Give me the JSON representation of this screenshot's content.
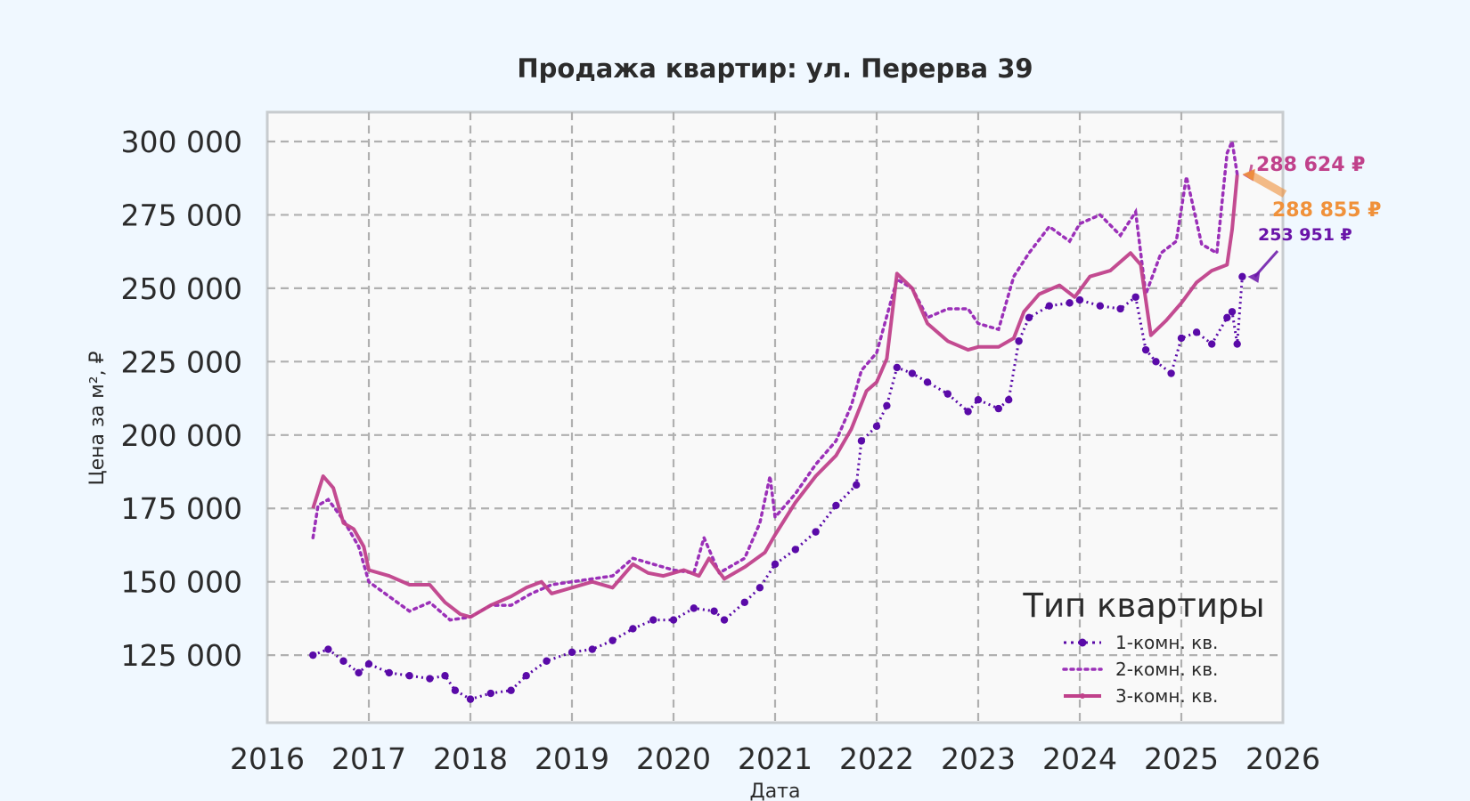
{
  "chart_data": {
    "type": "line",
    "title": "Продажа квартир: ул. Перерва 39",
    "xlabel": "Дата",
    "ylabel": "Цена за м², ₽",
    "xlim": [
      2016,
      2026
    ],
    "ylim": [
      102000,
      310000
    ],
    "x_ticks": [
      "2016",
      "2017",
      "2018",
      "2019",
      "2020",
      "2021",
      "2022",
      "2023",
      "2024",
      "2025",
      "2026"
    ],
    "y_ticks": [
      {
        "value": 125000,
        "label": "125 000"
      },
      {
        "value": 150000,
        "label": "150 000"
      },
      {
        "value": 175000,
        "label": "175 000"
      },
      {
        "value": 200000,
        "label": "200 000"
      },
      {
        "value": 225000,
        "label": "225 000"
      },
      {
        "value": 250000,
        "label": "250 000"
      },
      {
        "value": 275000,
        "label": "275 000"
      },
      {
        "value": 300000,
        "label": "300 000"
      }
    ],
    "grid": true,
    "legend": {
      "title": "Тип квартиры",
      "position": "lower-right"
    },
    "series": [
      {
        "name": "1-комн. кв.",
        "color": "#5a0aa8",
        "style": "dotted-markers",
        "points": [
          [
            2016.45,
            125000
          ],
          [
            2016.6,
            127000
          ],
          [
            2016.75,
            123000
          ],
          [
            2016.9,
            119000
          ],
          [
            2017.0,
            122000
          ],
          [
            2017.2,
            119000
          ],
          [
            2017.4,
            118000
          ],
          [
            2017.6,
            117000
          ],
          [
            2017.75,
            118000
          ],
          [
            2017.85,
            113000
          ],
          [
            2018.0,
            110000
          ],
          [
            2018.2,
            112000
          ],
          [
            2018.4,
            113000
          ],
          [
            2018.55,
            118000
          ],
          [
            2018.75,
            123000
          ],
          [
            2019.0,
            126000
          ],
          [
            2019.2,
            127000
          ],
          [
            2019.4,
            130000
          ],
          [
            2019.6,
            134000
          ],
          [
            2019.8,
            137000
          ],
          [
            2020.0,
            137000
          ],
          [
            2020.2,
            141000
          ],
          [
            2020.4,
            140000
          ],
          [
            2020.5,
            137000
          ],
          [
            2020.7,
            143000
          ],
          [
            2020.85,
            148000
          ],
          [
            2021.0,
            156000
          ],
          [
            2021.2,
            161000
          ],
          [
            2021.4,
            167000
          ],
          [
            2021.6,
            176000
          ],
          [
            2021.8,
            183000
          ],
          [
            2021.85,
            198000
          ],
          [
            2022.0,
            203000
          ],
          [
            2022.1,
            210000
          ],
          [
            2022.2,
            223000
          ],
          [
            2022.35,
            221000
          ],
          [
            2022.5,
            218000
          ],
          [
            2022.7,
            214000
          ],
          [
            2022.9,
            208000
          ],
          [
            2023.0,
            212000
          ],
          [
            2023.2,
            209000
          ],
          [
            2023.3,
            212000
          ],
          [
            2023.4,
            232000
          ],
          [
            2023.5,
            240000
          ],
          [
            2023.7,
            244000
          ],
          [
            2023.9,
            245000
          ],
          [
            2024.0,
            246000
          ],
          [
            2024.2,
            244000
          ],
          [
            2024.4,
            243000
          ],
          [
            2024.55,
            247000
          ],
          [
            2024.65,
            229000
          ],
          [
            2024.75,
            225000
          ],
          [
            2024.9,
            221000
          ],
          [
            2025.0,
            233000
          ],
          [
            2025.15,
            235000
          ],
          [
            2025.3,
            231000
          ],
          [
            2025.45,
            240000
          ],
          [
            2025.5,
            242000
          ],
          [
            2025.55,
            231000
          ],
          [
            2025.6,
            253951
          ]
        ]
      },
      {
        "name": "2-комн. кв.",
        "color": "#9b30b8",
        "style": "dotted",
        "points": [
          [
            2016.45,
            165000
          ],
          [
            2016.5,
            176000
          ],
          [
            2016.6,
            178000
          ],
          [
            2016.75,
            171000
          ],
          [
            2016.9,
            162000
          ],
          [
            2017.0,
            150000
          ],
          [
            2017.2,
            145000
          ],
          [
            2017.4,
            140000
          ],
          [
            2017.6,
            143000
          ],
          [
            2017.8,
            137000
          ],
          [
            2018.0,
            138000
          ],
          [
            2018.2,
            142000
          ],
          [
            2018.4,
            142000
          ],
          [
            2018.6,
            146000
          ],
          [
            2018.8,
            149000
          ],
          [
            2019.0,
            150000
          ],
          [
            2019.2,
            151000
          ],
          [
            2019.4,
            152000
          ],
          [
            2019.6,
            158000
          ],
          [
            2019.8,
            156000
          ],
          [
            2020.0,
            154000
          ],
          [
            2020.2,
            153000
          ],
          [
            2020.3,
            165000
          ],
          [
            2020.45,
            153000
          ],
          [
            2020.7,
            158000
          ],
          [
            2020.85,
            170000
          ],
          [
            2020.95,
            186000
          ],
          [
            2021.0,
            172000
          ],
          [
            2021.2,
            180000
          ],
          [
            2021.4,
            190000
          ],
          [
            2021.6,
            198000
          ],
          [
            2021.75,
            210000
          ],
          [
            2021.85,
            222000
          ],
          [
            2022.0,
            228000
          ],
          [
            2022.2,
            253000
          ],
          [
            2022.35,
            250000
          ],
          [
            2022.5,
            240000
          ],
          [
            2022.7,
            243000
          ],
          [
            2022.9,
            243000
          ],
          [
            2023.0,
            238000
          ],
          [
            2023.2,
            236000
          ],
          [
            2023.35,
            254000
          ],
          [
            2023.5,
            262000
          ],
          [
            2023.7,
            271000
          ],
          [
            2023.9,
            266000
          ],
          [
            2024.0,
            272000
          ],
          [
            2024.2,
            275000
          ],
          [
            2024.4,
            268000
          ],
          [
            2024.55,
            276000
          ],
          [
            2024.65,
            248000
          ],
          [
            2024.8,
            262000
          ],
          [
            2024.95,
            266000
          ],
          [
            2025.05,
            288000
          ],
          [
            2025.2,
            265000
          ],
          [
            2025.35,
            262000
          ],
          [
            2025.45,
            296000
          ],
          [
            2025.5,
            300000
          ],
          [
            2025.55,
            288855
          ]
        ]
      },
      {
        "name": "3-комн. кв.",
        "color": "#c0418b",
        "style": "solid",
        "points": [
          [
            2016.45,
            175000
          ],
          [
            2016.55,
            186000
          ],
          [
            2016.65,
            182000
          ],
          [
            2016.75,
            170000
          ],
          [
            2016.85,
            168000
          ],
          [
            2016.95,
            162000
          ],
          [
            2017.0,
            154000
          ],
          [
            2017.2,
            152000
          ],
          [
            2017.4,
            149000
          ],
          [
            2017.6,
            149000
          ],
          [
            2017.75,
            143000
          ],
          [
            2017.9,
            139000
          ],
          [
            2018.0,
            138000
          ],
          [
            2018.2,
            142000
          ],
          [
            2018.4,
            145000
          ],
          [
            2018.55,
            148000
          ],
          [
            2018.7,
            150000
          ],
          [
            2018.8,
            146000
          ],
          [
            2019.0,
            148000
          ],
          [
            2019.2,
            150000
          ],
          [
            2019.4,
            148000
          ],
          [
            2019.6,
            156000
          ],
          [
            2019.75,
            153000
          ],
          [
            2019.9,
            152000
          ],
          [
            2020.1,
            154000
          ],
          [
            2020.25,
            152000
          ],
          [
            2020.35,
            158000
          ],
          [
            2020.5,
            151000
          ],
          [
            2020.7,
            155000
          ],
          [
            2020.9,
            160000
          ],
          [
            2021.0,
            166000
          ],
          [
            2021.2,
            177000
          ],
          [
            2021.4,
            186000
          ],
          [
            2021.6,
            193000
          ],
          [
            2021.75,
            202000
          ],
          [
            2021.9,
            215000
          ],
          [
            2022.0,
            218000
          ],
          [
            2022.1,
            226000
          ],
          [
            2022.2,
            255000
          ],
          [
            2022.35,
            250000
          ],
          [
            2022.5,
            238000
          ],
          [
            2022.7,
            232000
          ],
          [
            2022.9,
            229000
          ],
          [
            2023.0,
            230000
          ],
          [
            2023.2,
            230000
          ],
          [
            2023.35,
            233000
          ],
          [
            2023.45,
            242000
          ],
          [
            2023.6,
            248000
          ],
          [
            2023.8,
            251000
          ],
          [
            2023.95,
            247000
          ],
          [
            2024.1,
            254000
          ],
          [
            2024.3,
            256000
          ],
          [
            2024.5,
            262000
          ],
          [
            2024.6,
            258000
          ],
          [
            2024.7,
            234000
          ],
          [
            2024.85,
            239000
          ],
          [
            2025.0,
            245000
          ],
          [
            2025.15,
            252000
          ],
          [
            2025.3,
            256000
          ],
          [
            2025.45,
            258000
          ],
          [
            2025.5,
            270000
          ],
          [
            2025.55,
            288624
          ]
        ]
      }
    ],
    "annotations": [
      {
        "text": "288 624 ₽",
        "color": "#c0418b"
      },
      {
        "text": "288 855 ₽",
        "color": "#f0913a"
      },
      {
        "text": "253 951 ₽",
        "color": "#6a14a8"
      }
    ]
  }
}
